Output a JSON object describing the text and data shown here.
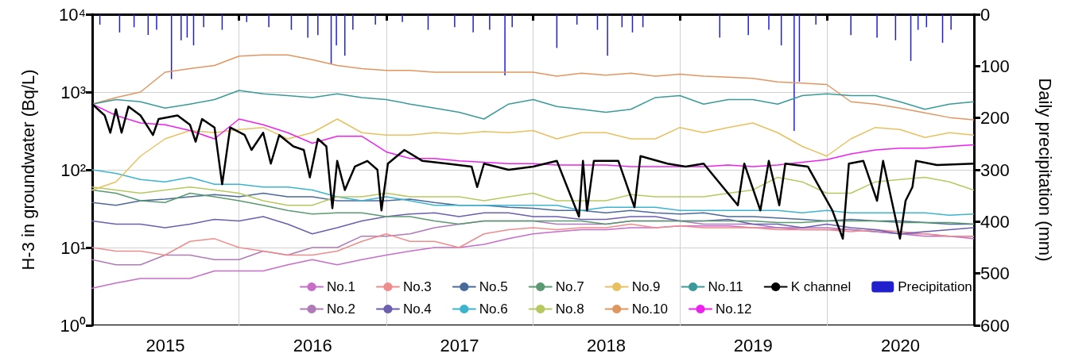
{
  "chart_data": {
    "type": "line",
    "ylabel": "H-3 in groundwater (Bq/L)",
    "y2label": "Daily precipitation (mm)",
    "log": "y",
    "grid": true,
    "legend": "bottom right",
    "marker": "none",
    "line_style": "solid",
    "xlim": [
      "2015-01-01",
      "2021-01-01"
    ],
    "xticks": [
      {
        "value": "2015-01-01",
        "label": null
      },
      {
        "value": "2015-07-02",
        "label": "2015"
      },
      {
        "value": "2016-01-01",
        "label": null
      },
      {
        "value": "2016-07-02",
        "label": "2016"
      },
      {
        "value": "2017-01-01",
        "label": null
      },
      {
        "value": "2017-07-02",
        "label": "2017"
      },
      {
        "value": "2018-01-01",
        "label": null
      },
      {
        "value": "2018-07-02",
        "label": "2018"
      },
      {
        "value": "2019-01-01",
        "label": null
      },
      {
        "value": "2019-07-02",
        "label": "2019"
      },
      {
        "value": "2020-01-01",
        "label": null
      },
      {
        "value": "2020-07-02",
        "label": "2020"
      },
      {
        "value": "2021-01-01",
        "label": null
      }
    ],
    "ylim": [
      1,
      10000
    ],
    "yticks": [
      {
        "value": 1,
        "label": "10⁰"
      },
      {
        "value": 10,
        "label": "10¹"
      },
      {
        "value": 100,
        "label": "10²"
      },
      {
        "value": 1000,
        "label": "10³"
      },
      {
        "value": 10000,
        "label": "10⁴"
      }
    ],
    "y2lim": [
      600,
      0
    ],
    "y2ticks": [
      0,
      100,
      200,
      300,
      400,
      500,
      600
    ],
    "x": [
      "2015-01-01",
      "2015-03-01",
      "2015-05-01",
      "2015-07-01",
      "2015-09-01",
      "2015-11-01",
      "2016-01-01",
      "2016-03-01",
      "2016-05-01",
      "2016-07-01",
      "2016-09-01",
      "2016-11-01",
      "2017-01-01",
      "2017-03-01",
      "2017-05-01",
      "2017-07-01",
      "2017-09-01",
      "2017-11-01",
      "2018-01-01",
      "2018-03-01",
      "2018-05-01",
      "2018-07-01",
      "2018-09-01",
      "2018-11-01",
      "2019-01-01",
      "2019-03-01",
      "2019-05-01",
      "2019-07-01",
      "2019-09-01",
      "2019-11-01",
      "2020-01-01",
      "2020-03-01",
      "2020-05-01",
      "2020-07-01",
      "2020-09-01",
      "2020-11-01",
      "2020-12-31"
    ],
    "series": [
      {
        "name": "No.1",
        "color": "#c86dc8",
        "values": [
          3,
          3.5,
          4,
          4,
          4,
          5,
          5,
          5,
          6,
          7,
          6,
          7,
          8,
          9,
          10,
          10,
          11,
          13,
          15,
          16,
          17,
          17,
          18,
          18,
          19,
          19,
          19,
          18,
          18,
          17,
          17,
          17,
          16,
          15,
          14,
          14,
          13
        ]
      },
      {
        "name": "No.2",
        "color": "#b07ab8",
        "values": [
          7,
          6,
          6,
          8,
          8,
          7,
          7,
          9,
          8,
          10,
          10,
          14,
          14,
          15,
          18,
          20,
          22,
          22,
          22,
          20,
          20,
          20,
          22,
          22,
          22,
          20,
          20,
          20,
          18,
          18,
          18,
          17,
          16,
          15,
          15,
          14,
          14
        ]
      },
      {
        "name": "No.3",
        "color": "#f08c8c",
        "values": [
          10,
          9,
          9,
          8,
          12,
          13,
          10,
          9,
          8,
          8,
          9,
          12,
          15,
          12,
          12,
          10,
          15,
          17,
          18,
          17,
          18,
          18,
          20,
          18,
          19,
          18,
          18,
          18,
          17,
          17,
          17,
          16,
          17,
          16,
          15,
          14,
          14
        ]
      },
      {
        "name": "No.4",
        "color": "#6a5fb0",
        "values": [
          22,
          20,
          20,
          18,
          20,
          23,
          22,
          25,
          20,
          15,
          18,
          22,
          25,
          27,
          28,
          25,
          28,
          28,
          25,
          25,
          23,
          23,
          25,
          25,
          22,
          22,
          23,
          20,
          20,
          18,
          20,
          18,
          17,
          15,
          16,
          17,
          18
        ]
      },
      {
        "name": "No.5",
        "color": "#4a6a9a",
        "values": [
          38,
          35,
          40,
          42,
          45,
          48,
          45,
          50,
          45,
          45,
          40,
          40,
          40,
          42,
          38,
          35,
          35,
          33,
          32,
          30,
          30,
          28,
          30,
          28,
          27,
          28,
          25,
          25,
          24,
          23,
          22,
          23,
          22,
          22,
          21,
          20,
          20
        ]
      },
      {
        "name": "No.6",
        "color": "#3cb4d0",
        "values": [
          100,
          90,
          75,
          70,
          80,
          65,
          65,
          60,
          60,
          55,
          45,
          40,
          45,
          40,
          35,
          35,
          35,
          35,
          35,
          35,
          30,
          33,
          33,
          33,
          30,
          30,
          30,
          30,
          30,
          28,
          30,
          28,
          28,
          28,
          28,
          26,
          27
        ]
      },
      {
        "name": "No.7",
        "color": "#5a9a70",
        "values": [
          55,
          50,
          40,
          38,
          50,
          45,
          40,
          35,
          30,
          27,
          28,
          28,
          25,
          25,
          22,
          20,
          22,
          22,
          22,
          22,
          22,
          20,
          22,
          22,
          22,
          22,
          22,
          22,
          21,
          21,
          22,
          22,
          22,
          21,
          21,
          21,
          20
        ]
      },
      {
        "name": "No.8",
        "color": "#b8c860",
        "values": [
          60,
          55,
          50,
          55,
          60,
          55,
          50,
          40,
          35,
          35,
          45,
          45,
          50,
          45,
          45,
          45,
          40,
          45,
          50,
          40,
          40,
          40,
          48,
          45,
          45,
          45,
          50,
          55,
          80,
          70,
          50,
          50,
          70,
          75,
          80,
          70,
          55
        ]
      },
      {
        "name": "No.9",
        "color": "#e8c060",
        "values": [
          55,
          70,
          150,
          250,
          320,
          300,
          330,
          350,
          250,
          300,
          450,
          300,
          280,
          280,
          300,
          290,
          310,
          300,
          320,
          250,
          300,
          300,
          250,
          250,
          350,
          300,
          350,
          400,
          300,
          200,
          150,
          250,
          350,
          330,
          260,
          300,
          280
        ]
      },
      {
        "name": "No.10",
        "color": "#e09660",
        "values": [
          700,
          850,
          1000,
          1800,
          2000,
          2200,
          2900,
          3000,
          3000,
          2600,
          2200,
          2000,
          1900,
          1900,
          1800,
          1800,
          1800,
          1800,
          1800,
          1600,
          1750,
          1650,
          1750,
          1600,
          1700,
          1600,
          1550,
          1500,
          1350,
          1300,
          1250,
          750,
          700,
          620,
          540,
          470,
          440
        ]
      },
      {
        "name": "No.11",
        "color": "#3a9a9a",
        "values": [
          700,
          800,
          750,
          620,
          700,
          800,
          1050,
          950,
          900,
          850,
          950,
          850,
          800,
          700,
          620,
          550,
          450,
          700,
          800,
          650,
          600,
          550,
          600,
          850,
          900,
          700,
          800,
          800,
          700,
          900,
          950,
          900,
          900,
          750,
          600,
          700,
          750
        ]
      },
      {
        "name": "No.12",
        "color": "#ee22ee",
        "values": [
          700,
          500,
          400,
          380,
          320,
          250,
          450,
          380,
          300,
          220,
          270,
          270,
          170,
          140,
          140,
          130,
          125,
          120,
          120,
          115,
          115,
          115,
          110,
          110,
          110,
          110,
          115,
          110,
          115,
          125,
          135,
          160,
          180,
          190,
          190,
          200,
          210
        ]
      },
      {
        "name": "K channel",
        "color": "#000000",
        "x": [
          "2015-01-01",
          "2015-02-01",
          "2015-02-15",
          "2015-03-01",
          "2015-03-15",
          "2015-04-01",
          "2015-05-01",
          "2015-06-01",
          "2015-06-15",
          "2015-08-01",
          "2015-09-01",
          "2015-09-15",
          "2015-10-01",
          "2015-11-01",
          "2015-11-20",
          "2015-12-10",
          "2016-01-15",
          "2016-02-01",
          "2016-03-01",
          "2016-03-20",
          "2016-04-10",
          "2016-05-15",
          "2016-06-10",
          "2016-06-25",
          "2016-07-15",
          "2016-08-05",
          "2016-08-20",
          "2016-09-01",
          "2016-09-20",
          "2016-10-15",
          "2016-11-15",
          "2016-12-10",
          "2016-12-20",
          "2017-01-05",
          "2017-02-15",
          "2017-04-01",
          "2017-06-01",
          "2017-08-01",
          "2017-08-15",
          "2017-09-01",
          "2017-11-01",
          "2018-01-01",
          "2018-03-01",
          "2018-04-25",
          "2018-05-05",
          "2018-05-15",
          "2018-06-01",
          "2018-08-01",
          "2018-09-10",
          "2018-09-25",
          "2018-12-01",
          "2019-01-15",
          "2019-03-01",
          "2019-05-25",
          "2019-06-10",
          "2019-07-20",
          "2019-08-10",
          "2019-09-05",
          "2019-09-20",
          "2019-11-15",
          "2020-01-15",
          "2020-02-10",
          "2020-02-25",
          "2020-04-01",
          "2020-05-05",
          "2020-05-20",
          "2020-07-01",
          "2020-07-15",
          "2020-08-01",
          "2020-08-10",
          "2020-10-01",
          "2020-12-31"
        ],
        "values": [
          700,
          500,
          300,
          600,
          300,
          650,
          500,
          280,
          450,
          500,
          380,
          230,
          450,
          350,
          65,
          350,
          280,
          180,
          300,
          120,
          280,
          200,
          180,
          80,
          250,
          200,
          32,
          130,
          55,
          110,
          130,
          100,
          30,
          120,
          180,
          130,
          120,
          110,
          60,
          120,
          100,
          110,
          130,
          25,
          130,
          30,
          130,
          130,
          33,
          150,
          120,
          110,
          120,
          35,
          120,
          30,
          130,
          35,
          120,
          110,
          30,
          13,
          120,
          130,
          40,
          130,
          13,
          40,
          60,
          130,
          115,
          120
        ]
      },
      {
        "name": "Precipitation",
        "type": "bar",
        "axis": "y2",
        "color": "#2020cc",
        "x": [
          "2015-01-20",
          "2015-03-10",
          "2015-04-15",
          "2015-05-20",
          "2015-06-10",
          "2015-07-17",
          "2015-08-10",
          "2015-08-25",
          "2015-09-10",
          "2015-10-05",
          "2015-11-20",
          "2016-01-20",
          "2016-03-15",
          "2016-05-10",
          "2016-06-20",
          "2016-07-15",
          "2016-08-17",
          "2016-08-30",
          "2016-09-20",
          "2016-10-10",
          "2016-12-05",
          "2017-02-10",
          "2017-04-15",
          "2017-06-20",
          "2017-08-05",
          "2017-09-15",
          "2017-10-23",
          "2017-11-10",
          "2018-03-01",
          "2018-04-20",
          "2018-06-10",
          "2018-07-05",
          "2018-08-10",
          "2018-09-05",
          "2018-10-01",
          "2019-04-10",
          "2019-06-20",
          "2019-08-10",
          "2019-09-10",
          "2019-10-12",
          "2019-10-25",
          "2019-12-05",
          "2020-03-01",
          "2020-05-05",
          "2020-06-20",
          "2020-07-28",
          "2020-08-15",
          "2020-09-05",
          "2020-10-15",
          "2020-11-05"
        ],
        "values": [
          20,
          35,
          25,
          40,
          30,
          125,
          50,
          45,
          60,
          25,
          30,
          15,
          25,
          30,
          45,
          40,
          95,
          60,
          80,
          30,
          20,
          15,
          30,
          25,
          35,
          30,
          118,
          25,
          65,
          20,
          30,
          80,
          25,
          35,
          25,
          45,
          40,
          30,
          60,
          225,
          130,
          20,
          40,
          45,
          50,
          90,
          30,
          25,
          55,
          30
        ]
      }
    ]
  }
}
